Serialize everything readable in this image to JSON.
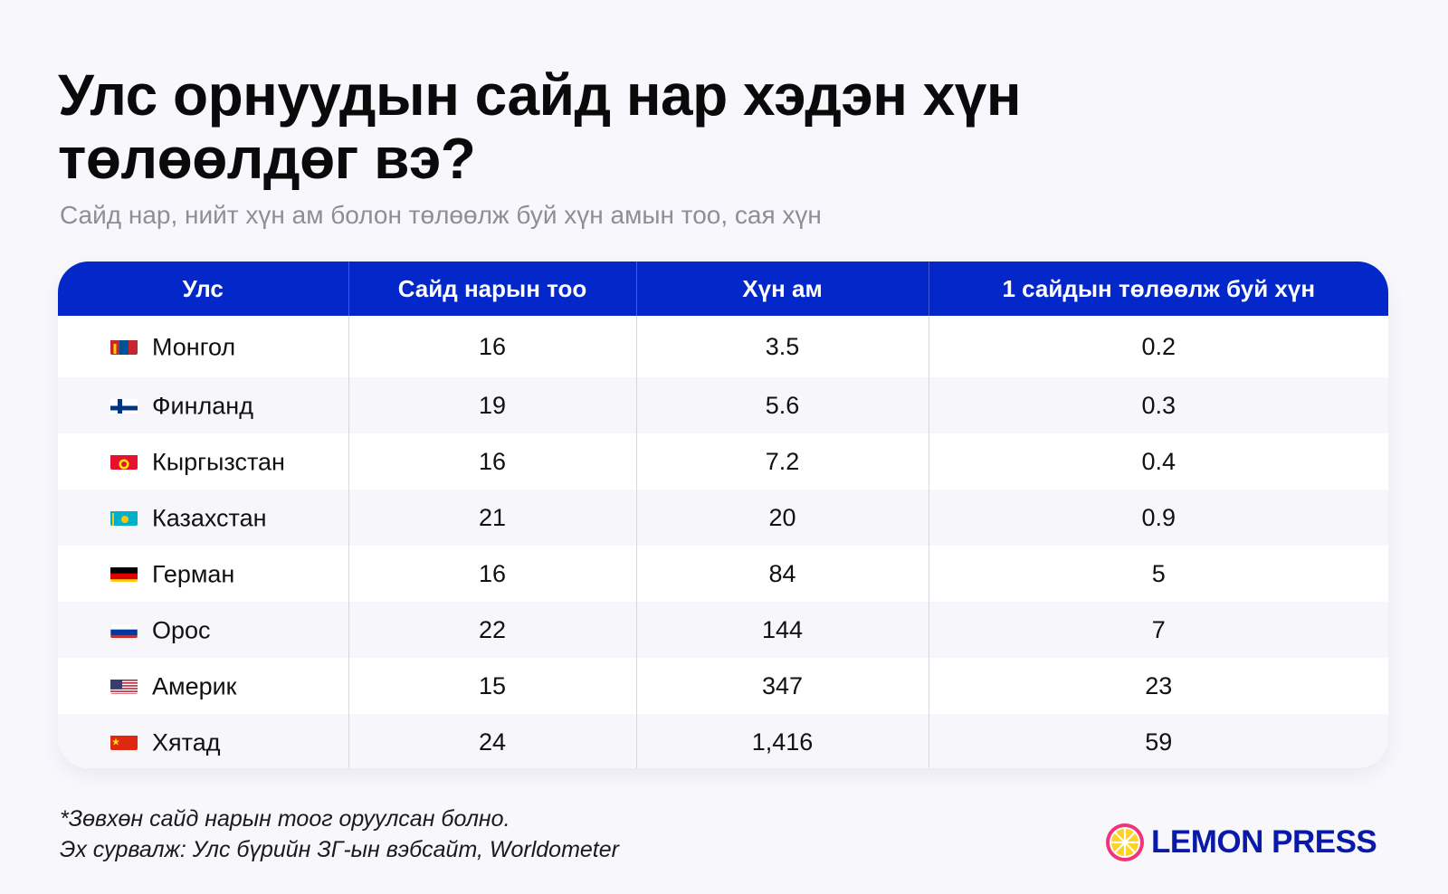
{
  "title": "Улс орнуудын сайд нар хэдэн хүн төлөөлдөг вэ?",
  "subtitle": "Сайд нар, нийт хүн ам болон төлөөлж буй хүн амын тоо, сая хүн",
  "chart_data": {
    "type": "table",
    "columns": [
      "Улс",
      "Сайд нарын тоо",
      "Хүн ам",
      "1 сайдын төлөөлж буй хүн"
    ],
    "rows": [
      {
        "country": "Монгол",
        "flag": "mongolia-flag-icon",
        "ministers": "16",
        "population": "3.5",
        "per_minister": "0.2"
      },
      {
        "country": "Финланд",
        "flag": "finland-flag-icon",
        "ministers": "19",
        "population": "5.6",
        "per_minister": "0.3"
      },
      {
        "country": "Кыргызстан",
        "flag": "kyrgyzstan-flag-icon",
        "ministers": "16",
        "population": "7.2",
        "per_minister": "0.4"
      },
      {
        "country": "Казахстан",
        "flag": "kazakhstan-flag-icon",
        "ministers": "21",
        "population": "20",
        "per_minister": "0.9"
      },
      {
        "country": "Герман",
        "flag": "germany-flag-icon",
        "ministers": "16",
        "population": "84",
        "per_minister": "5"
      },
      {
        "country": "Орос",
        "flag": "russia-flag-icon",
        "ministers": "22",
        "population": "144",
        "per_minister": "7"
      },
      {
        "country": "Америк",
        "flag": "usa-flag-icon",
        "ministers": "15",
        "population": "347",
        "per_minister": "23"
      },
      {
        "country": "Хятад",
        "flag": "china-flag-icon",
        "ministers": "24",
        "population": "1,416",
        "per_minister": "59"
      }
    ]
  },
  "footnote": {
    "line1": "*Зөвхөн сайд нарын тоог оруулсан болно.",
    "line2": "Эх сурвалж: Улс бүрийн ЗГ-ын вэбсайт, Worldometer"
  },
  "logo": {
    "text": "LEMON PRESS",
    "icon": "lemon-slice-icon"
  },
  "colors": {
    "header_bg": "#0327c9",
    "logo_text": "#0a1aa8",
    "logo_ring": "#f2337a",
    "logo_fill": "#ffd21f"
  }
}
